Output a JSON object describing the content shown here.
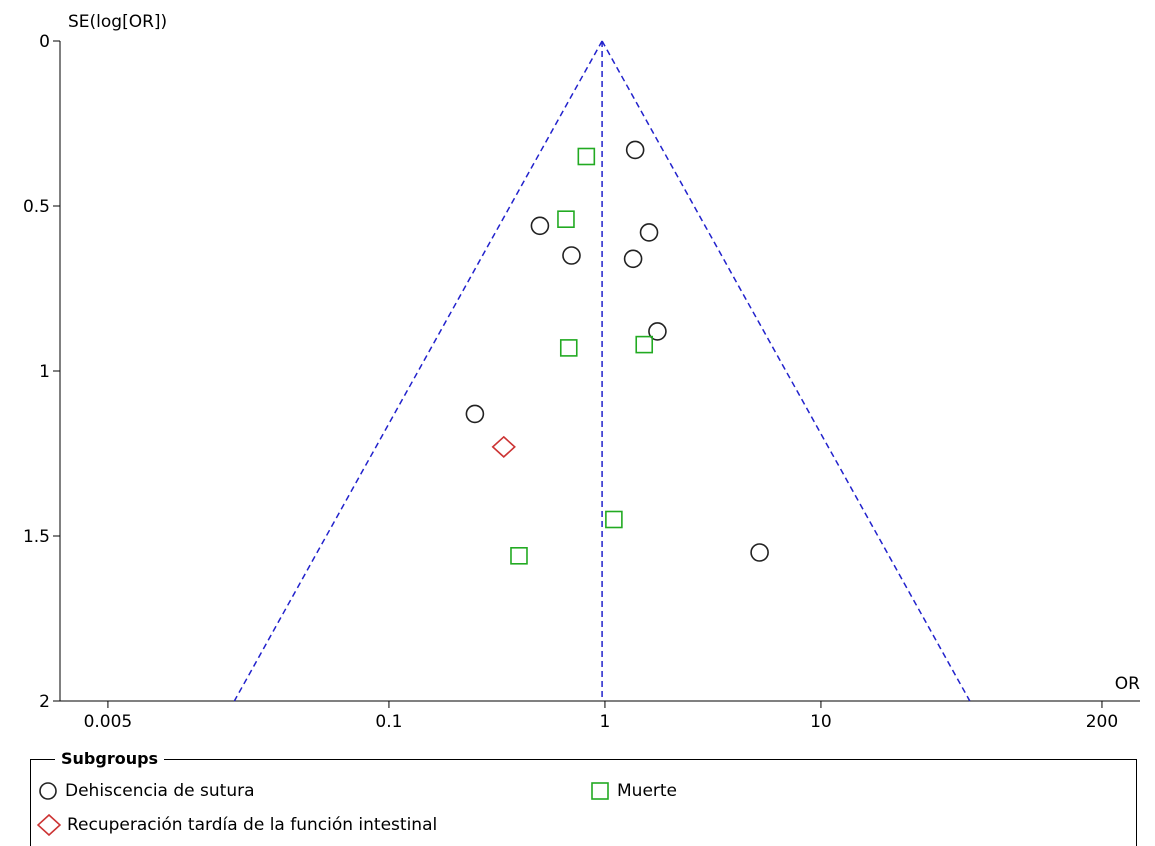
{
  "chart_data": {
    "type": "scatter",
    "title": "",
    "xlabel": "OR",
    "ylabel": "SE(log[OR])",
    "x_scale": "log",
    "x_ticks": [
      0.005,
      0.1,
      1,
      10,
      200
    ],
    "x_tick_labels": [
      "0.005",
      "0.1",
      "1",
      "10",
      "200"
    ],
    "xlim": [
      0.003,
      300
    ],
    "y_ticks": [
      0,
      0.5,
      1,
      1.5,
      2
    ],
    "y_tick_labels": [
      "0",
      "0.5",
      "1",
      "1.5",
      "2"
    ],
    "ylim": [
      0,
      2
    ],
    "y_reversed": true,
    "summary_or": 0.97,
    "funnel_z": 1.96,
    "grid": false,
    "legend_title": "Subgroups",
    "legend_position": "bottom",
    "series": [
      {
        "name": "Dehiscencia de sutura",
        "marker": "circle",
        "color": "#222222",
        "points": [
          {
            "x": 1.38,
            "y": 0.33
          },
          {
            "x": 0.5,
            "y": 0.56
          },
          {
            "x": 1.6,
            "y": 0.58
          },
          {
            "x": 0.7,
            "y": 0.65
          },
          {
            "x": 1.35,
            "y": 0.66
          },
          {
            "x": 1.75,
            "y": 0.88
          },
          {
            "x": 0.25,
            "y": 1.13
          },
          {
            "x": 5.2,
            "y": 1.55
          }
        ]
      },
      {
        "name": "Muerte",
        "marker": "square",
        "color": "#22aa22",
        "points": [
          {
            "x": 0.82,
            "y": 0.35
          },
          {
            "x": 0.66,
            "y": 0.54
          },
          {
            "x": 0.68,
            "y": 0.93
          },
          {
            "x": 1.52,
            "y": 0.92
          },
          {
            "x": 1.1,
            "y": 1.45
          },
          {
            "x": 0.4,
            "y": 1.56
          }
        ]
      },
      {
        "name": "Recuperación tardía de la función intestinal",
        "marker": "diamond",
        "color": "#cc3333",
        "points": [
          {
            "x": 0.34,
            "y": 1.23
          }
        ]
      }
    ]
  }
}
